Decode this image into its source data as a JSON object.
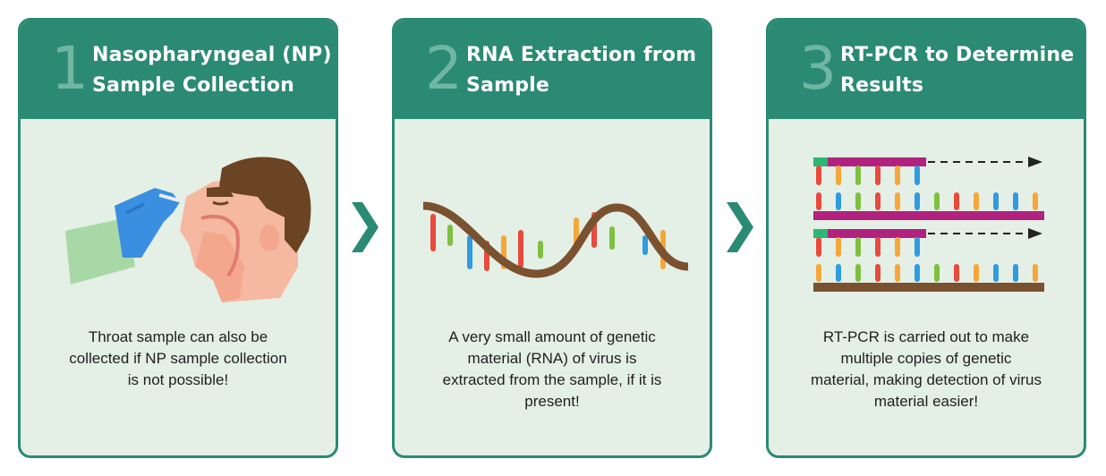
{
  "colors": {
    "accent": "#2b8a73",
    "card_bg": "#e4efe6",
    "number": "#6fb7a3"
  },
  "steps": [
    {
      "number": "1",
      "title_line1": "Nasopharyngeal (NP)",
      "title_line2": "Sample Collection",
      "description": [
        "Throat sample can also be",
        "collected if NP sample collection",
        "is not possible!"
      ],
      "illustration": "nasal-swab-illustration"
    },
    {
      "number": "2",
      "title_line1": "RNA Extraction from",
      "title_line2": "Sample",
      "description": [
        "A very small amount of genetic",
        "material (RNA) of virus is",
        "extracted from the sample, if it is",
        "present!"
      ],
      "illustration": "rna-strand-illustration"
    },
    {
      "number": "3",
      "title_line1": "RT-PCR to Determine",
      "title_line2": "Results",
      "description": [
        "RT-PCR is carried out to make",
        "multiple copies of genetic",
        "material, making detection of virus",
        "material easier!"
      ],
      "illustration": "pcr-copies-illustration"
    }
  ],
  "arrows": [
    "chevron-right-icon",
    "chevron-right-icon"
  ]
}
